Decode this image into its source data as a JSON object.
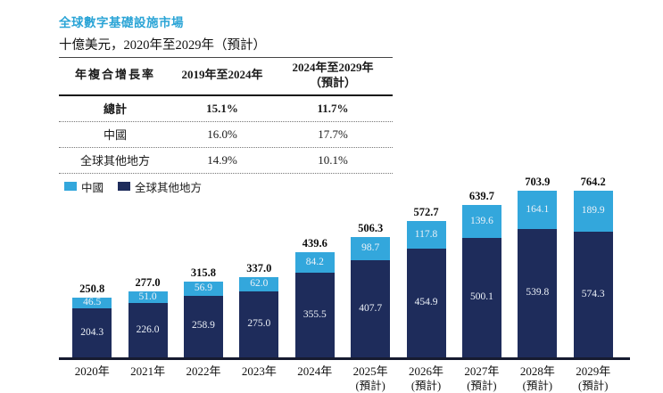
{
  "colors": {
    "title": "#2AA4D6",
    "china": "#33A7DC",
    "rest_of_world": "#1E2C5B",
    "axis": "#161B30",
    "label_on_bar": "#EDF2F8"
  },
  "header": {
    "title": "全球數字基礎設施市場",
    "subtitle": "十億美元，2020年至2029年（預計）"
  },
  "cagr_table": {
    "header": {
      "metric": "年複合增長率",
      "period1": "2019年至2024年",
      "period2_line1": "2024年至2029年",
      "period2_line2": "（預計）"
    },
    "rows": [
      {
        "label": "總計",
        "period1": "15.1%",
        "period2": "11.7%"
      },
      {
        "label": "中國",
        "period1": "16.0%",
        "period2": "17.7%"
      },
      {
        "label": "全球其他地方",
        "period1": "14.9%",
        "period2": "10.1%"
      }
    ]
  },
  "legend": {
    "items": [
      {
        "label": "中國",
        "color": "#33A7DC"
      },
      {
        "label": "全球其他地方",
        "color": "#1E2C5B"
      }
    ]
  },
  "chart_data": {
    "type": "bar",
    "stacked": true,
    "title": "全球數字基礎設施市場",
    "ylabel": "十億美元",
    "grid": false,
    "legend_position": "top-left",
    "ylim": [
      0,
      800
    ],
    "categories": [
      {
        "year": "2020年",
        "note": ""
      },
      {
        "year": "2021年",
        "note": ""
      },
      {
        "year": "2022年",
        "note": ""
      },
      {
        "year": "2023年",
        "note": ""
      },
      {
        "year": "2024年",
        "note": ""
      },
      {
        "year": "2025年",
        "note": "(預計)"
      },
      {
        "year": "2026年",
        "note": "(預計)"
      },
      {
        "year": "2027年",
        "note": "(預計)"
      },
      {
        "year": "2028年",
        "note": "(預計)"
      },
      {
        "year": "2029年",
        "note": "(預計)"
      }
    ],
    "series": [
      {
        "name": "中國",
        "color": "#33A7DC",
        "values": [
          46.5,
          51.0,
          56.9,
          62.0,
          84.2,
          98.7,
          117.8,
          139.6,
          164.1,
          189.9
        ]
      },
      {
        "name": "全球其他地方",
        "color": "#1E2C5B",
        "values": [
          204.3,
          226.0,
          258.9,
          275.0,
          355.5,
          407.7,
          454.9,
          500.1,
          539.8,
          574.3
        ]
      }
    ],
    "totals": [
      250.8,
      277.0,
      315.8,
      337.0,
      439.6,
      506.3,
      572.7,
      639.7,
      703.9,
      764.2
    ]
  }
}
